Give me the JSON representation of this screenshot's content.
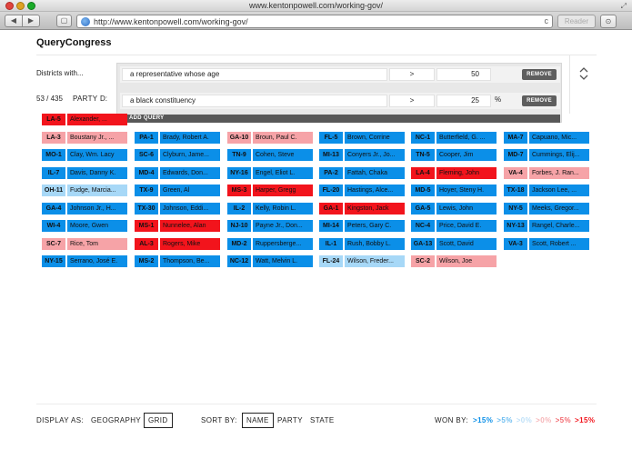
{
  "browser": {
    "window_title": "www.kentonpowell.com/working-gov/",
    "url": "http://www.kentonpowell.com/working-gov/",
    "reader_label": "Reader",
    "nav_back": "◀",
    "nav_forward": "▶",
    "sidebar_glyph": "▢",
    "reload_glyph": "c",
    "downloads_glyph": "⊙",
    "resize_glyph": "⤢"
  },
  "app": {
    "title": "QueryCongress"
  },
  "query": {
    "districts_label": "Districts with...",
    "count": "53 / 435",
    "party_label": "PARTY",
    "party_cut": "D:",
    "rows": [
      {
        "text": "a representative whose age",
        "operator": ">",
        "value": "50",
        "unit": "",
        "remove_label": "REMOVE"
      },
      {
        "text": "a black constituency",
        "operator": ">",
        "value": "25",
        "unit": "%",
        "remove_label": "REMOVE"
      }
    ],
    "add_query_label": "ADD QUERY",
    "collapse_glyph": "⌃\n⌄"
  },
  "colors": {
    "dem_strong": "#0b8fe8",
    "dem_lean": "#a7d8f7",
    "rep_strong": "#f2141c",
    "rep_lean": "#f6a3a7"
  },
  "grid": [
    [
      {
        "code": "LA-5",
        "name": "Alexander, ...",
        "party": "rs"
      },
      null,
      null,
      null,
      null,
      null,
      null,
      null
    ],
    [
      {
        "code": "LA-3",
        "name": "Boustany Jr., ...",
        "party": "rl"
      },
      {
        "code": "PA-1",
        "name": "Brady, Robert A.",
        "party": "dr"
      },
      {
        "code": "GA-10",
        "name": "Broun, Paul C.",
        "party": "rl"
      },
      {
        "code": "FL-5",
        "name": "Brown, Corrine",
        "party": "dr"
      },
      {
        "code": "NC-1",
        "name": "Butterfield, G. ...",
        "party": "dr"
      },
      {
        "code": "MA-7",
        "name": "Capuano, Mic...",
        "party": "dr"
      },
      null,
      null
    ],
    [
      {
        "code": "MO-1",
        "name": "Clay, Wm. Lacy",
        "party": "dr"
      },
      {
        "code": "SC-6",
        "name": "Clyburn, Jame...",
        "party": "dr"
      },
      {
        "code": "TN-9",
        "name": "Cohen, Steve",
        "party": "dr"
      },
      {
        "code": "MI-13",
        "name": "Conyers Jr., Jo...",
        "party": "dr"
      },
      {
        "code": "TN-5",
        "name": "Cooper, Jim",
        "party": "dr"
      },
      {
        "code": "MD-7",
        "name": "Cummings, Elij...",
        "party": "dr"
      },
      null,
      null
    ],
    [
      {
        "code": "IL-7",
        "name": "Davis, Danny K.",
        "party": "dr"
      },
      {
        "code": "MD-4",
        "name": "Edwards, Don...",
        "party": "dr"
      },
      {
        "code": "NY-16",
        "name": "Engel, Eliot L.",
        "party": "dr"
      },
      {
        "code": "PA-2",
        "name": "Fattah, Chaka",
        "party": "dr"
      },
      {
        "code": "LA-4",
        "name": "Fleming, John",
        "party": "rs"
      },
      {
        "code": "VA-4",
        "name": "Forbes, J. Ran...",
        "party": "rl"
      },
      null,
      null
    ],
    [
      {
        "code": "OH-11",
        "name": "Fudge, Marcia...",
        "party": "dl"
      },
      {
        "code": "TX-9",
        "name": "Green, Al",
        "party": "dr"
      },
      {
        "code": "MS-3",
        "name": "Harper, Gregg",
        "party": "rs"
      },
      {
        "code": "FL-20",
        "name": "Hastings, Alce...",
        "party": "dr"
      },
      {
        "code": "MD-5",
        "name": "Hoyer, Steny H.",
        "party": "dr"
      },
      {
        "code": "TX-18",
        "name": "Jackson Lee, ...",
        "party": "dr"
      },
      null,
      null
    ],
    [
      {
        "code": "GA-4",
        "name": "Johnson Jr., H...",
        "party": "dr"
      },
      {
        "code": "TX-30",
        "name": "Johnson, Eddi...",
        "party": "dr"
      },
      {
        "code": "IL-2",
        "name": "Kelly, Robin L.",
        "party": "dr"
      },
      {
        "code": "GA-1",
        "name": "Kingston, Jack",
        "party": "rs"
      },
      {
        "code": "GA-5",
        "name": "Lewis, John",
        "party": "dr"
      },
      {
        "code": "NY-5",
        "name": "Meeks, Gregor...",
        "party": "dr"
      },
      null,
      null
    ],
    [
      {
        "code": "WI-4",
        "name": "Moore, Gwen",
        "party": "dr"
      },
      {
        "code": "MS-1",
        "name": "Nunnelee, Alan",
        "party": "rs"
      },
      {
        "code": "NJ-10",
        "name": "Payne Jr., Don...",
        "party": "dr"
      },
      {
        "code": "MI-14",
        "name": "Peters, Gary C.",
        "party": "dr"
      },
      {
        "code": "NC-4",
        "name": "Price, David E.",
        "party": "dr"
      },
      {
        "code": "NY-13",
        "name": "Rangel, Charle...",
        "party": "dr"
      },
      null,
      null
    ],
    [
      {
        "code": "SC-7",
        "name": "Rice, Tom",
        "party": "rl"
      },
      {
        "code": "AL-3",
        "name": "Rogers, Mike",
        "party": "rs"
      },
      {
        "code": "MD-2",
        "name": "Ruppersberge...",
        "party": "dr"
      },
      {
        "code": "IL-1",
        "name": "Rush, Bobby L.",
        "party": "dr"
      },
      {
        "code": "GA-13",
        "name": "Scott, David",
        "party": "dr"
      },
      {
        "code": "VA-3",
        "name": "Scott, Robert ...",
        "party": "dr"
      },
      null,
      null
    ],
    [
      {
        "code": "NY-15",
        "name": "Serrano, José E.",
        "party": "dr"
      },
      {
        "code": "MS-2",
        "name": "Thompson, Be...",
        "party": "dr"
      },
      {
        "code": "NC-12",
        "name": "Watt, Melvin L.",
        "party": "dr"
      },
      {
        "code": "FL-24",
        "name": "Wilson, Freder...",
        "party": "dl"
      },
      {
        "code": "SC-2",
        "name": "Wilson, Joe",
        "party": "rl"
      },
      null,
      null,
      null
    ]
  ],
  "footer": {
    "display_as_label": "DISPLAY AS:",
    "display_options": [
      "GEOGRAPHY",
      "GRID"
    ],
    "display_selected": "GRID",
    "sort_by_label": "SORT BY:",
    "sort_options": [
      "NAME",
      "PARTY",
      "STATE"
    ],
    "sort_selected": "NAME",
    "won_by_label": "WON BY:",
    "won_by": [
      {
        "label": ">15%",
        "color": "#0b8fe8"
      },
      {
        "label": ">5%",
        "color": "#6bbcf0"
      },
      {
        "label": ">0%",
        "color": "#bfe1f8"
      },
      {
        "label": ">0%",
        "color": "#f6b5b8"
      },
      {
        "label": ">5%",
        "color": "#f26a70"
      },
      {
        "label": ">15%",
        "color": "#f2141c"
      }
    ]
  }
}
